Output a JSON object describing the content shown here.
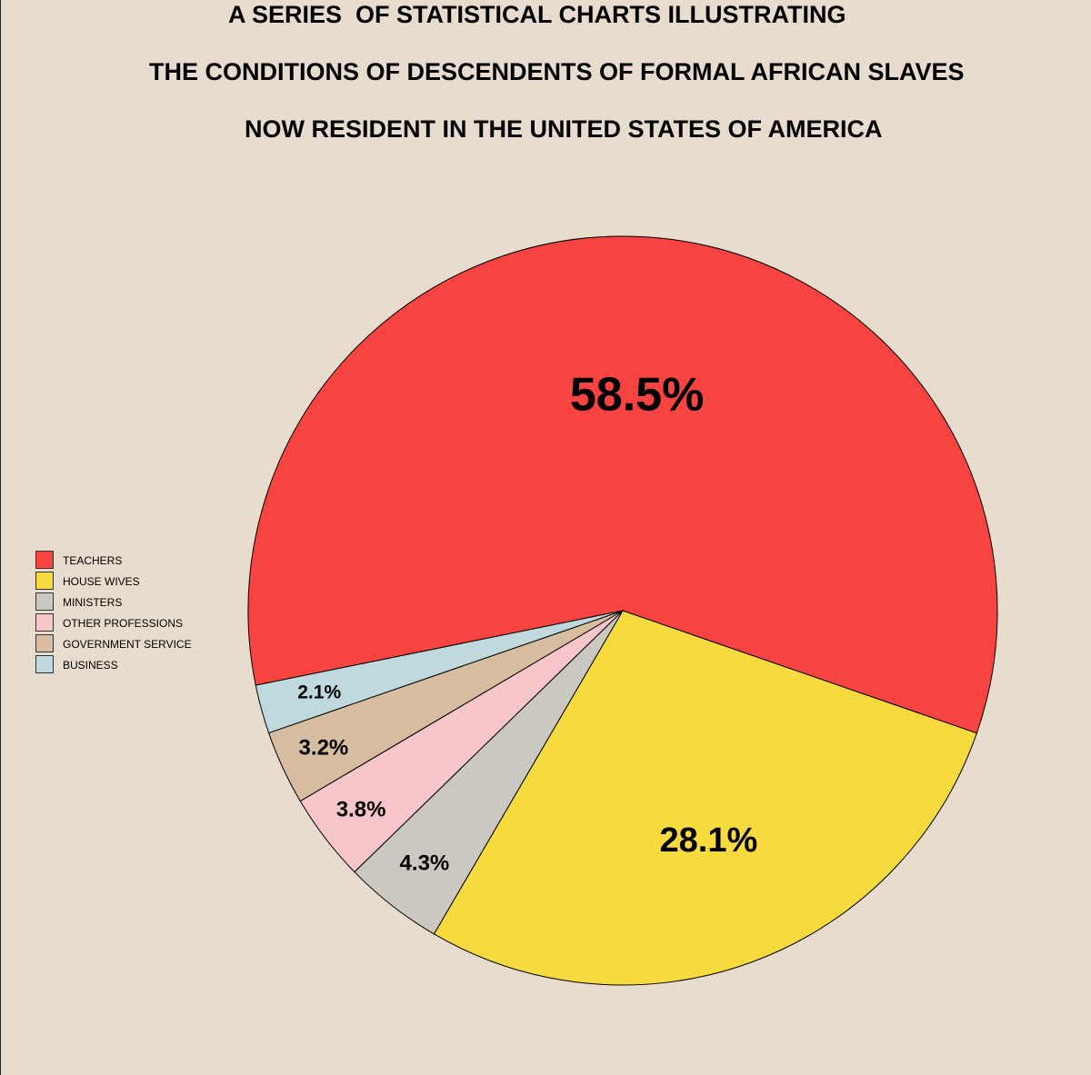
{
  "chart_data": {
    "type": "pie",
    "title": [
      "A SERIES  OF STATISTICAL CHARTS ILLUSTRATING",
      "THE CONDITIONS OF DESCENDENTS OF FORMAL AFRICAN SLAVES",
      "NOW RESIDENT IN THE UNITED STATES OF AMERICA"
    ],
    "slices": [
      {
        "name": "TEACHERS",
        "value": 58.5,
        "label": "58.5%",
        "color": "#f74440"
      },
      {
        "name": "HOUSE WIVES",
        "value": 28.1,
        "label": "28.1%",
        "color": "#f7da3e"
      },
      {
        "name": "MINISTERS",
        "value": 4.3,
        "label": "4.3%",
        "color": "#cbc7c1"
      },
      {
        "name": "OTHER PROFESSIONS",
        "value": 3.8,
        "label": "3.8%",
        "color": "#f7c6cb"
      },
      {
        "name": "GOVERNMENT SERVICE",
        "value": 3.2,
        "label": "3.2%",
        "color": "#d7bd9f"
      },
      {
        "name": "BUSINESS",
        "value": 2.1,
        "label": "2.1%",
        "color": "#c0d9dd"
      }
    ],
    "legend_position": "left"
  },
  "colors": {
    "background": "#e7dccd",
    "outline": "#000000"
  }
}
